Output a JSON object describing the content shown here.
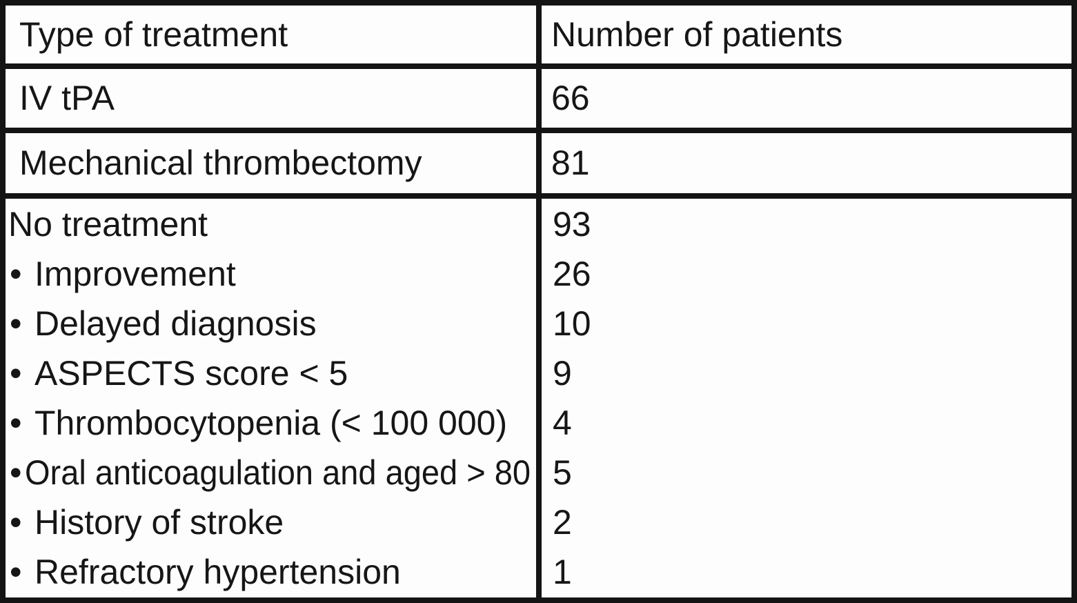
{
  "colors": {
    "border": "#141414",
    "cell_background": "#fdfdfd",
    "text": "#161616"
  },
  "table": {
    "bullet": "•",
    "columns": [
      {
        "label": "Type of treatment"
      },
      {
        "label": "Number of patients"
      }
    ],
    "rows": [
      {
        "treatment": "IV tPA",
        "patients": "66"
      },
      {
        "treatment": "Mechanical thrombectomy",
        "patients": "81"
      },
      {
        "treatment": "No treatment",
        "patients": "93",
        "sub_items": [
          {
            "label": "Improvement",
            "patients": "26"
          },
          {
            "label": "Delayed diagnosis",
            "patients": "10"
          },
          {
            "label": "ASPECTS score < 5",
            "patients": "9"
          },
          {
            "label": "Thrombocytopenia (< 100 000)",
            "patients": "4"
          },
          {
            "label": "Oral anticoagulation and aged > 80",
            "patients": "5"
          },
          {
            "label": "History of stroke",
            "patients": "2"
          },
          {
            "label": "Refractory hypertension",
            "patients": "1"
          }
        ]
      }
    ]
  }
}
